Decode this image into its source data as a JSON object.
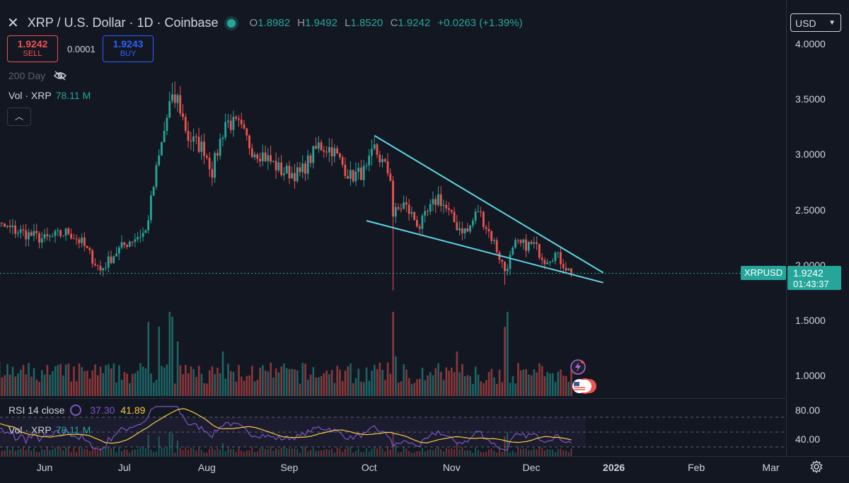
{
  "header": {
    "title": "XRP / U.S. Dollar · 1D · Coinbase",
    "ohlc": {
      "o_label": "O",
      "o": "1.8982",
      "h_label": "H",
      "h": "1.9492",
      "l_label": "L",
      "l": "1.8520",
      "c_label": "C",
      "c": "1.9242",
      "change": "+0.0263 (+1.39%)"
    },
    "sell": {
      "price": "1.9242",
      "label": "SELL"
    },
    "buy": {
      "price": "1.9243",
      "label": "BUY"
    },
    "spread": "0.0001",
    "ma_label": "200 Day",
    "vol_label": "Vol · XRP",
    "vol_value": "78.11 M",
    "currency": "USD"
  },
  "price_tag": {
    "symbol": "XRPUSD",
    "price": "1.9242",
    "countdown": "01:43:37"
  },
  "rsi": {
    "label": "RSI 14 close",
    "rsi_value": "37.30",
    "ma_value": "41.89",
    "vol_label": "Vol · XRP",
    "vol_value": "78.11 M"
  },
  "colors": {
    "bg": "#131722",
    "up": "#26a69a",
    "down": "#ef5350",
    "trendline": "#5ed6e6",
    "rsi": "#7e57c2",
    "rsi_ma": "#f7c948"
  },
  "chart_data": {
    "type": "candlestick",
    "title": "XRP / U.S. Dollar · 1D · Coinbase",
    "y_ticks": [
      "4.0000",
      "3.5000",
      "3.0000",
      "2.5000",
      "2.0000",
      "1.5000",
      "1.0000"
    ],
    "y_range": [
      0.9,
      4.15
    ],
    "rsi_ticks": [
      "80.00",
      "40.00"
    ],
    "rsi_range": [
      20,
      100
    ],
    "x_ticks": [
      {
        "label": "Jun",
        "date": "2025-06-01"
      },
      {
        "label": "Jul",
        "date": "2025-07-01"
      },
      {
        "label": "Aug",
        "date": "2025-08-01"
      },
      {
        "label": "Sep",
        "date": "2025-09-01"
      },
      {
        "label": "Oct",
        "date": "2025-10-01"
      },
      {
        "label": "Nov",
        "date": "2025-11-01"
      },
      {
        "label": "Dec",
        "date": "2025-12-01"
      },
      {
        "label": "2026",
        "date": "2026-01-01",
        "bold": true
      },
      {
        "label": "Feb",
        "date": "2026-02-01"
      },
      {
        "label": "Mar",
        "date": "2026-03-01"
      }
    ],
    "start_date": "2025-05-08",
    "end_date": "2025-12-16",
    "anchors": [
      [
        "2025-05-08",
        2.4
      ],
      [
        "2025-05-20",
        2.32
      ],
      [
        "2025-06-01",
        2.23
      ],
      [
        "2025-06-10",
        2.3
      ],
      [
        "2025-06-15",
        2.2
      ],
      [
        "2025-06-22",
        1.95
      ],
      [
        "2025-06-28",
        2.12
      ],
      [
        "2025-07-03",
        2.22
      ],
      [
        "2025-07-09",
        2.3
      ],
      [
        "2025-07-13",
        2.85
      ],
      [
        "2025-07-18",
        3.45
      ],
      [
        "2025-07-21",
        3.5
      ],
      [
        "2025-07-25",
        3.15
      ],
      [
        "2025-07-31",
        3.05
      ],
      [
        "2025-08-03",
        2.85
      ],
      [
        "2025-08-08",
        3.3
      ],
      [
        "2025-08-13",
        3.25
      ],
      [
        "2025-08-18",
        3.05
      ],
      [
        "2025-08-22",
        3.0
      ],
      [
        "2025-08-29",
        2.85
      ],
      [
        "2025-09-05",
        2.82
      ],
      [
        "2025-09-12",
        3.08
      ],
      [
        "2025-09-17",
        3.05
      ],
      [
        "2025-09-24",
        2.8
      ],
      [
        "2025-09-30",
        2.85
      ],
      [
        "2025-10-03",
        3.05
      ],
      [
        "2025-10-09",
        2.8
      ],
      [
        "2025-10-10",
        2.45
      ],
      [
        "2025-10-14",
        2.55
      ],
      [
        "2025-10-20",
        2.35
      ],
      [
        "2025-10-27",
        2.62
      ],
      [
        "2025-11-03",
        2.35
      ],
      [
        "2025-11-07",
        2.3
      ],
      [
        "2025-11-11",
        2.5
      ],
      [
        "2025-11-17",
        2.2
      ],
      [
        "2025-11-21",
        1.95
      ],
      [
        "2025-11-25",
        2.18
      ],
      [
        "2025-12-02",
        2.18
      ],
      [
        "2025-12-06",
        2.05
      ],
      [
        "2025-12-10",
        2.1
      ],
      [
        "2025-12-14",
        1.98
      ],
      [
        "2025-12-16",
        1.9242
      ]
    ],
    "wick_events": [
      {
        "date": "2025-06-22",
        "low": 1.91
      },
      {
        "date": "2025-07-20",
        "high": 3.66
      },
      {
        "date": "2025-10-10",
        "low": 1.77
      },
      {
        "date": "2025-11-21",
        "low": 1.82
      }
    ],
    "trendlines": [
      {
        "from": {
          "date": "2025-10-03",
          "price": 3.17
        },
        "to": {
          "date": "2025-12-28",
          "price": 1.93
        }
      },
      {
        "from": {
          "date": "2025-09-30",
          "price": 2.4
        },
        "to": {
          "date": "2025-12-28",
          "price": 1.84
        }
      }
    ],
    "last_price": 1.9242,
    "volume_spikes": [
      {
        "date": "2025-07-10",
        "rel": 0.75
      },
      {
        "date": "2025-07-14",
        "rel": 0.7
      },
      {
        "date": "2025-07-18",
        "rel": 0.85
      },
      {
        "date": "2025-07-19",
        "rel": 0.8
      },
      {
        "date": "2025-07-21",
        "rel": 0.55
      },
      {
        "date": "2025-08-07",
        "rel": 0.45
      },
      {
        "date": "2025-10-10",
        "rel": 0.85
      },
      {
        "date": "2025-10-11",
        "rel": 0.4
      },
      {
        "date": "2025-11-03",
        "rel": 0.45
      },
      {
        "date": "2025-11-21",
        "rel": 0.7
      },
      {
        "date": "2025-11-22",
        "rel": 0.85
      }
    ]
  }
}
